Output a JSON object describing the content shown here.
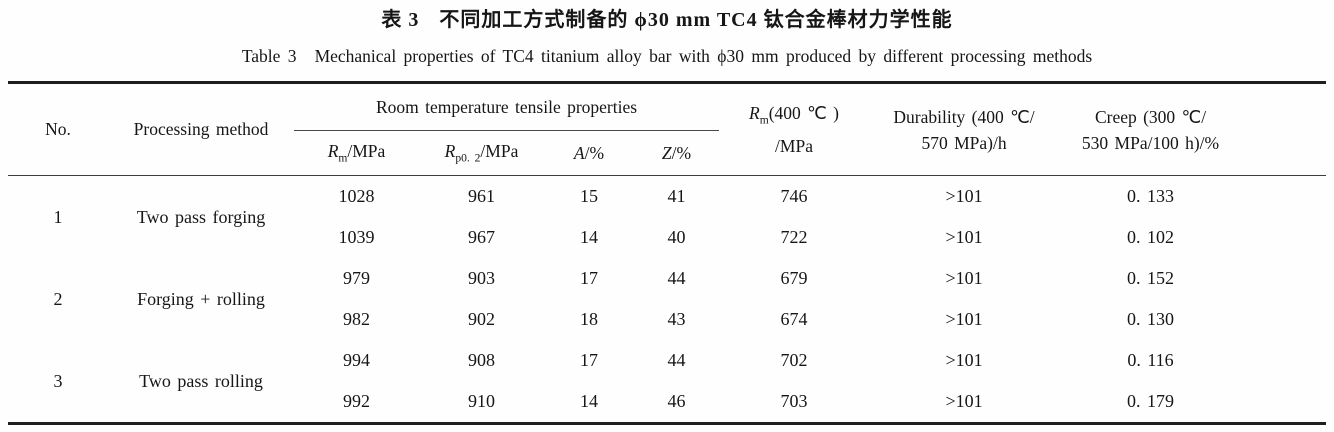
{
  "title_zh": {
    "label": "表 3",
    "text": "不同加工方式制备的 ϕ30 mm TC4 钛合金棒材力学性能"
  },
  "title_en": {
    "label": "Table 3",
    "text": "Mechanical properties of TC4 titanium alloy bar with ϕ30 mm produced by different processing methods"
  },
  "table": {
    "headers": {
      "no": "No.",
      "method": "Processing method",
      "tensile_group": "Room temperature tensile properties",
      "rm": {
        "sym": "R",
        "sub": "m",
        "rest": "/MPa"
      },
      "rp": {
        "sym": "R",
        "sub": "p0. 2",
        "rest": "/MPa"
      },
      "a": {
        "sym": "A",
        "rest": "/%"
      },
      "z": {
        "sym": "Z",
        "rest": "/%"
      },
      "rm400": {
        "sym": "R",
        "sub": "m",
        "rest": "(400 ℃ )",
        "line2": "/MPa"
      },
      "durability": {
        "line1": "Durability (400 ℃/",
        "line2": "570 MPa)/h"
      },
      "creep": {
        "line1": "Creep (300 ℃/",
        "line2": "530 MPa/100 h)/%"
      }
    },
    "groups": [
      {
        "no": "1",
        "method": "Two pass forging",
        "rows": [
          [
            "1028",
            "961",
            "15",
            "41",
            "746",
            ">101",
            "0. 133"
          ],
          [
            "1039",
            "967",
            "14",
            "40",
            "722",
            ">101",
            "0. 102"
          ]
        ]
      },
      {
        "no": "2",
        "method": "Forging + rolling",
        "rows": [
          [
            "979",
            "903",
            "17",
            "44",
            "679",
            ">101",
            "0. 152"
          ],
          [
            "982",
            "902",
            "18",
            "43",
            "674",
            ">101",
            "0. 130"
          ]
        ]
      },
      {
        "no": "3",
        "method": "Two pass rolling",
        "rows": [
          [
            "994",
            "908",
            "17",
            "44",
            "702",
            ">101",
            "0. 116"
          ],
          [
            "992",
            "910",
            "14",
            "46",
            "703",
            ">101",
            "0. 179"
          ]
        ]
      }
    ]
  }
}
